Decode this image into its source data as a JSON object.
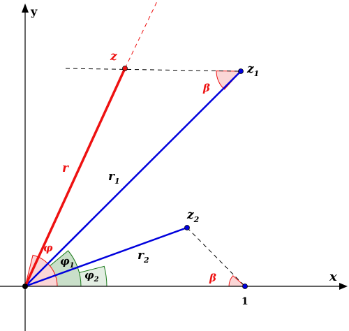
{
  "axes": {
    "x_label": "x",
    "y_label": "y",
    "tick_one": "1"
  },
  "points": {
    "z": "z",
    "z1": "z",
    "z1_sub": "1",
    "z2": "z",
    "z2_sub": "2"
  },
  "segments": {
    "r": "r",
    "r1": "r",
    "r1_sub": "1",
    "r2": "r",
    "r2_sub": "2"
  },
  "angles": {
    "phi": "φ",
    "phi1": "φ",
    "phi1_sub": "1",
    "phi2": "φ",
    "phi2_sub": "2",
    "beta_top": "β",
    "beta_bottom": "β"
  },
  "colors": {
    "red": "#ee1111",
    "blue": "#0000dd",
    "green": "#1a7a1a",
    "green_fill": "#c9dfc9",
    "red_fill": "#fbd6d6",
    "black": "#000000"
  }
}
